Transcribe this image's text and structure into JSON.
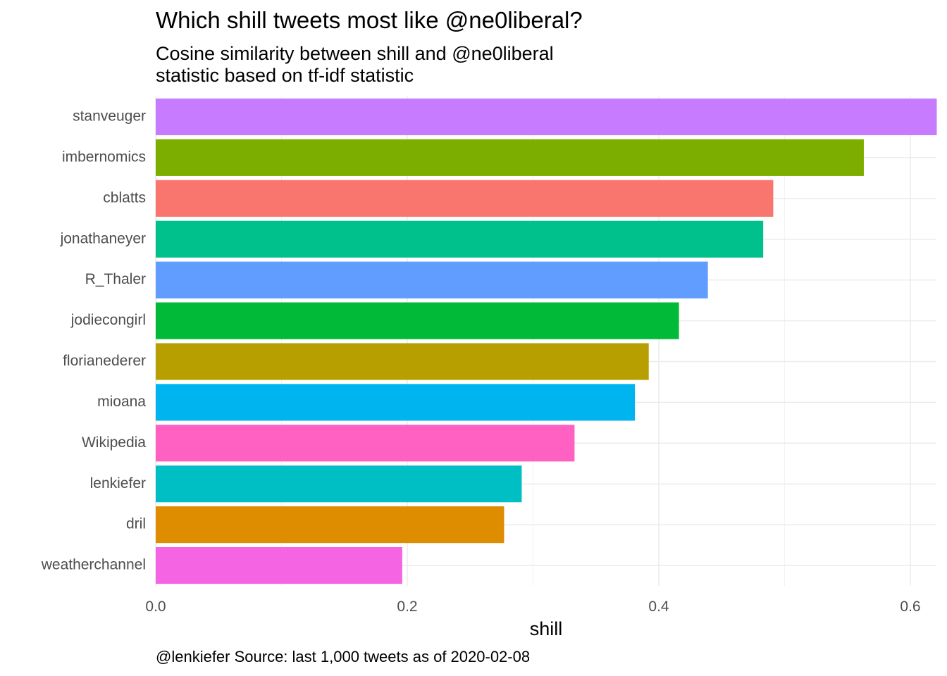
{
  "title": "Which shill tweets most like @ne0liberal?",
  "subtitle_line1": "Cosine similarity between shill and @ne0liberal",
  "subtitle_line2": "statistic based on tf-idf statistic",
  "caption": "@lenkiefer Source: last 1,000 tweets as of 2020-02-08",
  "chart_data": {
    "type": "bar",
    "orientation": "horizontal",
    "xlabel": "shill",
    "ylabel": "",
    "xlim": [
      0,
      0.62
    ],
    "xticks": [
      0.0,
      0.2,
      0.4,
      0.6
    ],
    "xtick_labels": [
      "0.0",
      "0.2",
      "0.4",
      "0.6"
    ],
    "grid": true,
    "legend": "none",
    "categories": [
      "stanveuger",
      "imbernomics",
      "cblatts",
      "jonathaneyer",
      "R_Thaler",
      "jodiecongirl",
      "florianederer",
      "mioana",
      "Wikipedia",
      "lenkiefer",
      "dril",
      "weatherchannel"
    ],
    "values": [
      0.621,
      0.563,
      0.491,
      0.483,
      0.439,
      0.416,
      0.392,
      0.381,
      0.333,
      0.291,
      0.277,
      0.196
    ],
    "colors": [
      "#C77CFF",
      "#7CAE00",
      "#F8766D",
      "#00C08B",
      "#619CFF",
      "#00BA38",
      "#B79F00",
      "#00B4EF",
      "#FF61C3",
      "#00BFC4",
      "#DE8C00",
      "#F564E3"
    ]
  }
}
